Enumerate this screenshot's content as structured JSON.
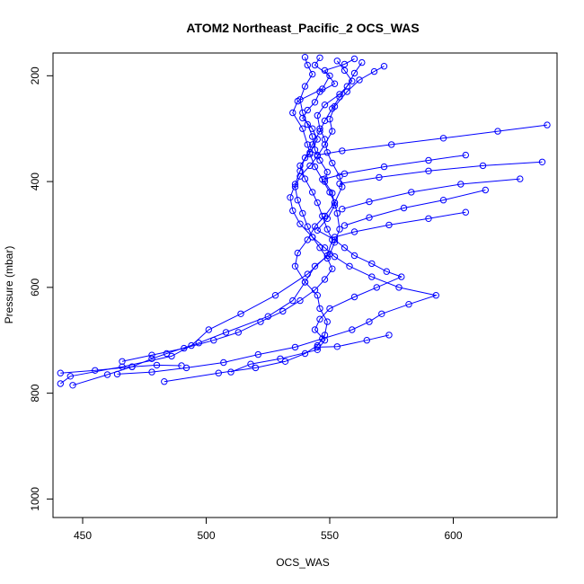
{
  "chart_data": {
    "type": "line",
    "title": "ATOM2 Northeast_Pacific_2 OCS_WAS",
    "xlabel": "OCS_WAS",
    "ylabel": "Pressure (mbar)",
    "xlim": [
      438,
      642
    ],
    "ylim": [
      1035,
      157
    ],
    "y_reversed": true,
    "xticks": [
      450,
      500,
      550,
      600
    ],
    "yticks": [
      200,
      400,
      600,
      800,
      1000
    ],
    "grid": false,
    "legend": "none",
    "color": "#0000ff",
    "marker": "open-circle",
    "series": [
      {
        "values": [
          [
            560,
            168
          ],
          [
            556,
            178
          ],
          [
            548,
            190
          ],
          [
            552,
            215
          ],
          [
            546,
            230
          ],
          [
            544,
            250
          ],
          [
            541,
            265
          ],
          [
            539,
            280
          ],
          [
            543,
            300
          ],
          [
            545,
            320
          ],
          [
            542,
            345
          ],
          [
            538,
            370
          ],
          [
            540,
            395
          ],
          [
            543,
            420
          ],
          [
            545,
            440
          ],
          [
            547,
            465
          ],
          [
            549,
            490
          ],
          [
            551,
            510
          ],
          [
            549,
            540
          ],
          [
            541,
            575
          ],
          [
            528,
            615
          ],
          [
            514,
            650
          ],
          [
            501,
            680
          ],
          [
            494,
            710
          ],
          [
            486,
            730
          ],
          [
            466,
            750
          ],
          [
            445,
            768
          ],
          [
            441,
            782
          ]
        ]
      },
      {
        "values": [
          [
            546,
            166
          ],
          [
            544,
            180
          ],
          [
            550,
            200
          ],
          [
            547,
            225
          ],
          [
            537,
            248
          ],
          [
            535,
            270
          ],
          [
            539,
            300
          ],
          [
            541,
            330
          ],
          [
            542,
            348
          ],
          [
            544,
            372
          ],
          [
            547,
            396
          ],
          [
            550,
            420
          ],
          [
            552,
            440
          ],
          [
            553,
            460
          ],
          [
            554,
            490
          ],
          [
            552,
            515
          ],
          [
            550,
            537
          ],
          [
            544,
            560
          ],
          [
            540,
            590
          ],
          [
            535,
            625
          ],
          [
            525,
            655
          ],
          [
            508,
            685
          ],
          [
            497,
            705
          ],
          [
            484,
            725
          ],
          [
            478,
            735
          ],
          [
            470,
            750
          ],
          [
            460,
            765
          ],
          [
            446,
            785
          ]
        ]
      },
      {
        "values": [
          [
            553,
            172
          ],
          [
            556,
            190
          ],
          [
            559,
            210
          ],
          [
            554,
            235
          ],
          [
            548,
            255
          ],
          [
            545,
            275
          ],
          [
            546,
            300
          ],
          [
            548,
            320
          ],
          [
            549,
            345
          ],
          [
            551,
            365
          ],
          [
            554,
            390
          ],
          [
            555,
            410
          ],
          [
            552,
            440
          ],
          [
            548,
            465
          ],
          [
            544,
            485
          ],
          [
            541,
            510
          ],
          [
            537,
            535
          ],
          [
            536,
            560
          ],
          [
            540,
            590
          ],
          [
            545,
            615
          ],
          [
            546,
            640
          ],
          [
            549,
            665
          ],
          [
            548,
            690
          ],
          [
            545,
            710
          ],
          [
            540,
            725
          ],
          [
            532,
            740
          ],
          [
            520,
            752
          ],
          [
            505,
            762
          ],
          [
            483,
            778
          ]
        ]
      },
      {
        "values": [
          [
            563,
            175
          ],
          [
            560,
            195
          ],
          [
            557,
            220
          ],
          [
            554,
            240
          ],
          [
            551,
            262
          ],
          [
            548,
            285
          ],
          [
            546,
            305
          ],
          [
            543,
            330
          ],
          [
            540,
            355
          ],
          [
            538,
            380
          ],
          [
            536,
            405
          ],
          [
            534,
            430
          ],
          [
            535,
            455
          ],
          [
            538,
            480
          ],
          [
            543,
            505
          ],
          [
            548,
            525
          ],
          [
            552,
            542
          ],
          [
            558,
            560
          ],
          [
            567,
            580
          ],
          [
            578,
            600
          ],
          [
            593,
            615
          ],
          [
            582,
            632
          ],
          [
            571,
            650
          ],
          [
            566,
            665
          ],
          [
            559,
            680
          ],
          [
            547,
            697
          ],
          [
            536,
            713
          ],
          [
            521,
            727
          ],
          [
            507,
            742
          ],
          [
            492,
            752
          ],
          [
            478,
            760
          ],
          [
            464,
            764
          ]
        ]
      },
      {
        "values": [
          [
            540,
            165
          ],
          [
            541,
            180
          ],
          [
            543,
            197
          ],
          [
            540,
            220
          ],
          [
            538,
            245
          ],
          [
            539,
            270
          ],
          [
            541,
            292
          ],
          [
            543,
            315
          ],
          [
            544,
            340
          ],
          [
            546,
            360
          ],
          [
            549,
            382
          ],
          [
            548,
            400
          ],
          [
            551,
            422
          ],
          [
            552,
            445
          ],
          [
            549,
            470
          ],
          [
            545,
            492
          ],
          [
            552,
            510
          ],
          [
            556,
            525
          ],
          [
            560,
            540
          ],
          [
            567,
            555
          ],
          [
            573,
            570
          ],
          [
            579,
            580
          ],
          [
            569,
            600
          ],
          [
            560,
            618
          ],
          [
            550,
            640
          ],
          [
            546,
            660
          ],
          [
            544,
            680
          ],
          [
            548,
            700
          ],
          [
            545,
            718
          ],
          [
            530,
            735
          ],
          [
            518,
            745
          ],
          [
            510,
            760
          ]
        ]
      },
      {
        "values": [
          [
            572,
            182
          ],
          [
            568,
            192
          ],
          [
            562,
            208
          ],
          [
            557,
            230
          ],
          [
            552,
            258
          ],
          [
            550,
            282
          ],
          [
            551,
            305
          ],
          [
            548,
            330
          ],
          [
            545,
            352
          ],
          [
            542,
            370
          ],
          [
            538,
            390
          ],
          [
            536,
            410
          ],
          [
            537,
            435
          ],
          [
            539,
            460
          ],
          [
            541,
            485
          ],
          [
            543,
            505
          ],
          [
            546,
            525
          ],
          [
            549,
            545
          ],
          [
            551,
            565
          ],
          [
            548,
            585
          ],
          [
            544,
            605
          ],
          [
            538,
            625
          ],
          [
            531,
            645
          ],
          [
            522,
            665
          ],
          [
            513,
            685
          ],
          [
            503,
            700
          ],
          [
            491,
            715
          ],
          [
            478,
            728
          ],
          [
            466,
            740
          ]
        ]
      },
      {
        "values": [
          [
            638,
            293
          ],
          [
            618,
            305
          ],
          [
            596,
            318
          ],
          [
            575,
            330
          ],
          [
            555,
            342
          ],
          [
            545,
            350
          ]
        ]
      },
      {
        "values": [
          [
            605,
            350
          ],
          [
            590,
            360
          ],
          [
            572,
            372
          ],
          [
            556,
            385
          ],
          [
            548,
            395
          ]
        ]
      },
      {
        "values": [
          [
            636,
            363
          ],
          [
            612,
            370
          ],
          [
            590,
            380
          ],
          [
            570,
            392
          ],
          [
            554,
            404
          ]
        ]
      },
      {
        "values": [
          [
            627,
            395
          ],
          [
            603,
            405
          ],
          [
            583,
            420
          ],
          [
            566,
            438
          ],
          [
            555,
            452
          ]
        ]
      },
      {
        "values": [
          [
            605,
            458
          ],
          [
            590,
            470
          ],
          [
            574,
            482
          ],
          [
            560,
            495
          ],
          [
            552,
            505
          ]
        ]
      },
      {
        "values": [
          [
            613,
            416
          ],
          [
            596,
            435
          ],
          [
            580,
            450
          ],
          [
            566,
            468
          ],
          [
            556,
            483
          ]
        ]
      },
      {
        "values": [
          [
            574,
            690
          ],
          [
            565,
            700
          ],
          [
            553,
            712
          ],
          [
            545,
            713
          ]
        ]
      },
      {
        "values": [
          [
            441,
            762
          ],
          [
            455,
            757
          ],
          [
            470,
            750
          ],
          [
            480,
            747
          ],
          [
            490,
            748
          ]
        ]
      }
    ]
  }
}
